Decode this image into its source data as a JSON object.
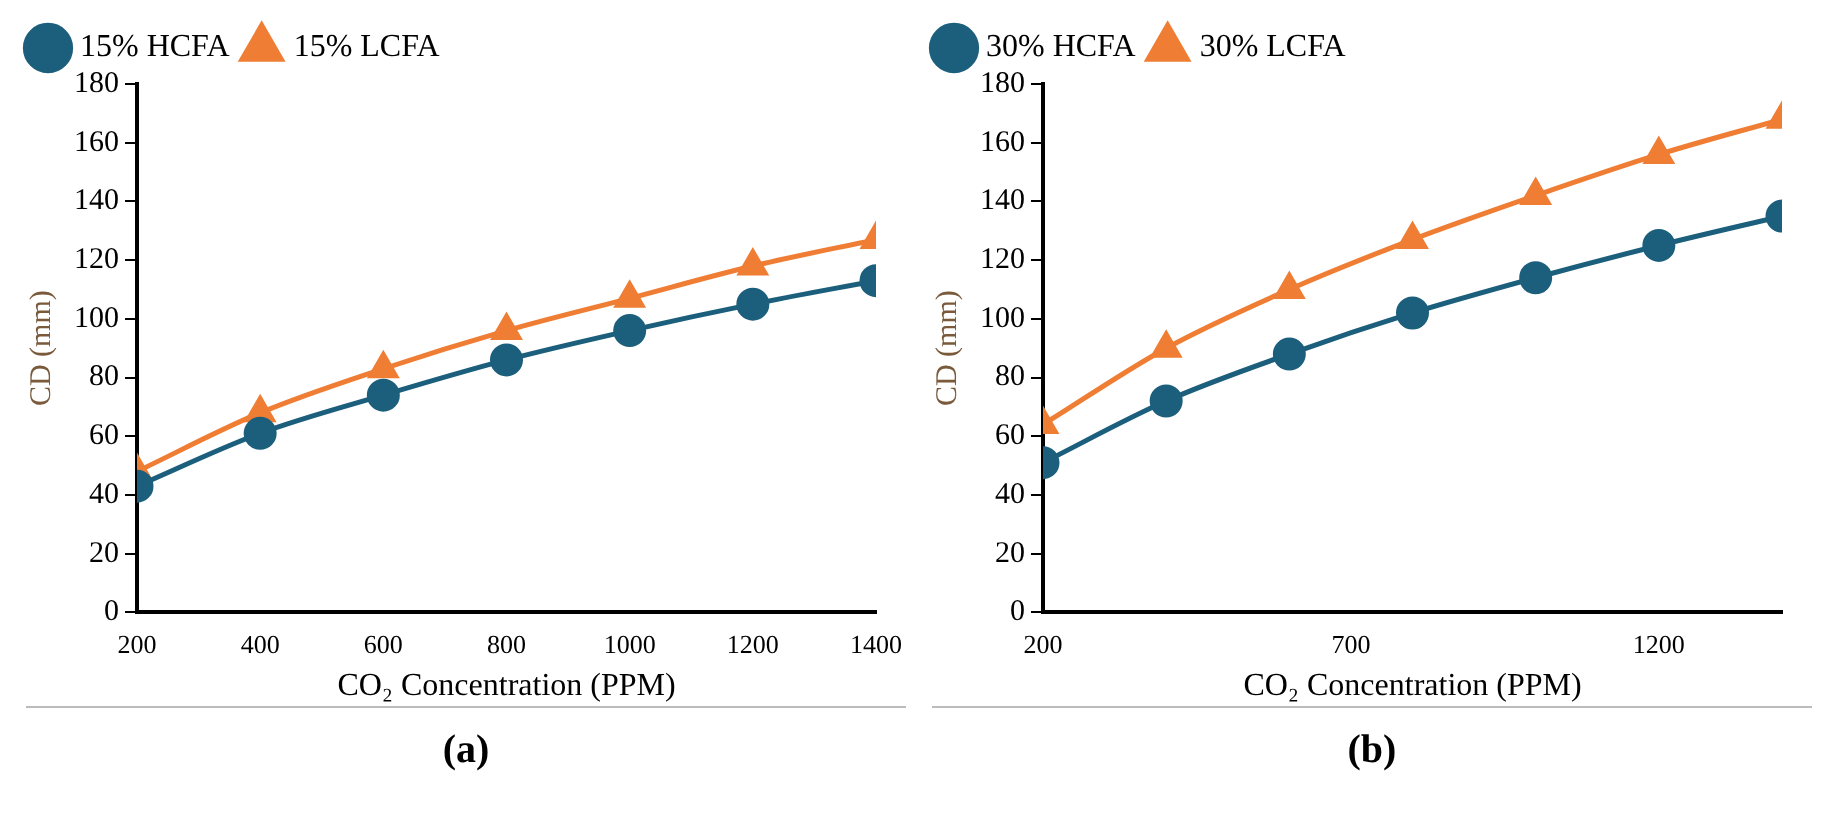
{
  "chart_data": [
    {
      "type": "line",
      "xlabel": "CO₂ Concentration (PPM)",
      "ylabel": "CD (mm)",
      "x": [
        200,
        400,
        600,
        800,
        1000,
        1200,
        1400
      ],
      "xlim": [
        200,
        1400
      ],
      "xticks": [
        200,
        400,
        600,
        800,
        1000,
        1200,
        1400
      ],
      "ylim": [
        0,
        180
      ],
      "yticks": [
        0,
        20,
        40,
        60,
        80,
        100,
        120,
        140,
        160,
        180
      ],
      "legend": "top left",
      "annotations": [
        "(a)"
      ],
      "series": [
        {
          "name": "15% HCFA",
          "color": "#1c5f7d",
          "marker": "circle",
          "values": [
            43,
            61,
            74,
            86,
            96,
            105,
            113
          ]
        },
        {
          "name": "15% LCFA",
          "color": "#ef7d34",
          "marker": "triangle",
          "values": [
            48,
            68,
            83,
            96,
            107,
            118,
            127
          ]
        }
      ]
    },
    {
      "type": "line",
      "xlabel": "CO₂ Concentration (PPM)",
      "ylabel": "CD (mm)",
      "x": [
        200,
        400,
        600,
        800,
        1000,
        1200,
        1400
      ],
      "xlim": [
        200,
        1400
      ],
      "xticks": [
        200,
        700,
        1200
      ],
      "ylim": [
        0,
        180
      ],
      "yticks": [
        0,
        20,
        40,
        60,
        80,
        100,
        120,
        140,
        160,
        180
      ],
      "legend": "top left",
      "annotations": [
        "(b)"
      ],
      "series": [
        {
          "name": "30% HCFA",
          "color": "#1c5f7d",
          "marker": "circle",
          "values": [
            51,
            72,
            88,
            102,
            114,
            125,
            135
          ]
        },
        {
          "name": "30% LCFA",
          "color": "#ef7d34",
          "marker": "triangle",
          "values": [
            64,
            90,
            110,
            127,
            142,
            156,
            168
          ]
        }
      ]
    }
  ]
}
